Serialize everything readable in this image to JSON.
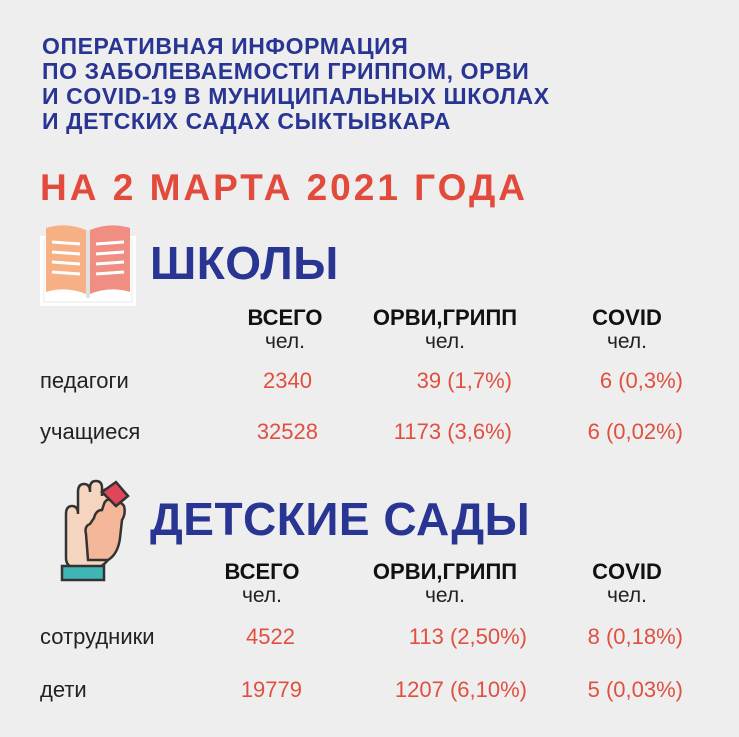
{
  "title_lines": [
    "ОПЕРАТИВНАЯ  ИНФОРМАЦИЯ",
    "ПО ЗАБОЛЕВАЕМОСТИ  ГРИППОМ,  ОРВИ",
    "И  COVID-19  В  МУНИЦИПАЛЬНЫХ  ШКОЛАХ",
    "И  ДЕТСКИХ  САДАХ  СЫКТЫВКАРА"
  ],
  "date": "НА 2 МАРТА 2021 ГОДА",
  "colors": {
    "title": "#283593",
    "accent": "#e24a3b",
    "background": "#eeeeee"
  },
  "schools": {
    "icon": "book-icon",
    "title": "ШКОЛЫ",
    "columns": [
      {
        "head": "ВСЕГО",
        "unit": "чел."
      },
      {
        "head": "ОРВИ,ГРИПП",
        "unit": "чел."
      },
      {
        "head": "COVID",
        "unit": "чел."
      }
    ],
    "rows": [
      {
        "label": "педагоги",
        "total": "2340",
        "flu": "39 (1,7%)",
        "covid": "6 (0,3%)"
      },
      {
        "label": "учащиеся",
        "total": "32528",
        "flu": "1173 (3,6%)",
        "covid": "6 (0,02%)"
      }
    ]
  },
  "kindergartens": {
    "icon": "hands-icon",
    "title": "ДЕТСКИЕ САДЫ",
    "columns": [
      {
        "head": "ВСЕГО",
        "unit": "чел."
      },
      {
        "head": "ОРВИ,ГРИПП",
        "unit": "чел."
      },
      {
        "head": "COVID",
        "unit": "чел."
      }
    ],
    "rows": [
      {
        "label": "сотрудники",
        "total": "4522",
        "flu": "113 (2,50%)",
        "covid": "8 (0,18%)"
      },
      {
        "label": "дети",
        "total": "19779",
        "flu": "1207 (6,10%)",
        "covid": "5 (0,03%)"
      }
    ]
  }
}
